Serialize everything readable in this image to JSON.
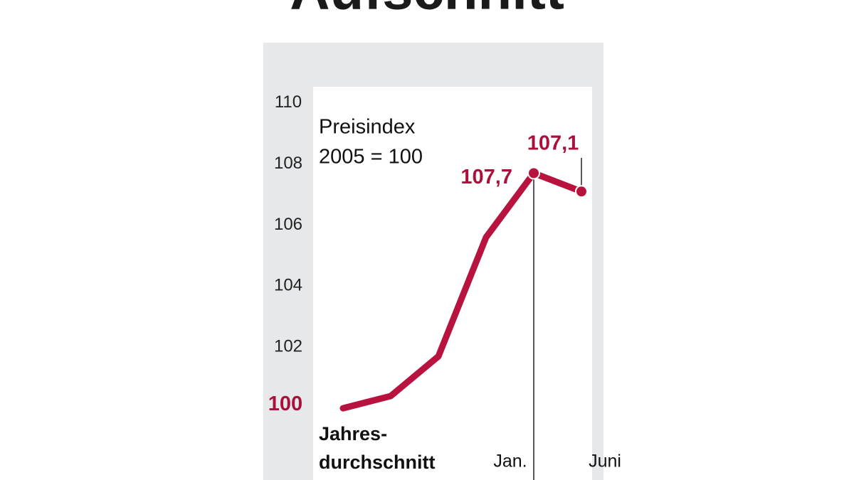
{
  "chart_data": {
    "type": "line",
    "title": "Aufschnitt",
    "annotations": [
      "Preisindex",
      "2005 = 100"
    ],
    "categories": [
      [
        "Jahres-",
        "durchschnitt"
      ],
      null,
      null,
      null,
      "Jan.",
      "Juni"
    ],
    "series": [
      {
        "color": "#b8133f",
        "values": [
          100,
          100.4,
          101.7,
          105.6,
          107.7,
          107.1
        ],
        "value_labels": [
          "100",
          null,
          null,
          null,
          "107,7",
          "107,1"
        ]
      }
    ],
    "ylim": [
      97.65,
      110.53
    ],
    "yticks": [
      102,
      104,
      106,
      108,
      110
    ]
  }
}
